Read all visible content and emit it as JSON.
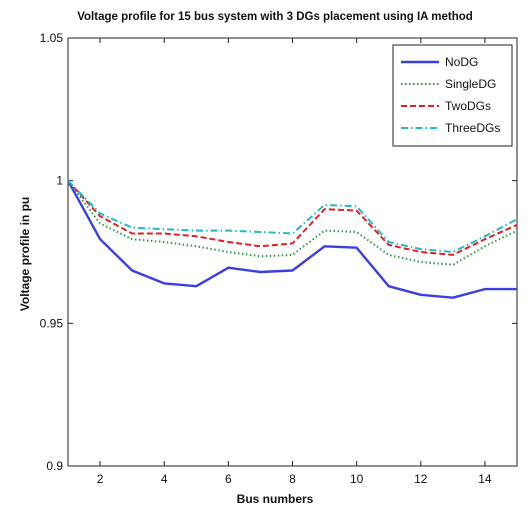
{
  "chart_data": {
    "type": "line",
    "title": "Voltage profile for 15 bus system with 3 DGs placement using IA method",
    "xlabel": "Bus numbers",
    "ylabel": "Voltage profile in pu",
    "xlim": [
      1,
      15
    ],
    "ylim": [
      0.9,
      1.05
    ],
    "xticks": [
      2,
      4,
      6,
      8,
      10,
      12,
      14
    ],
    "yticks": [
      0.9,
      0.95,
      1,
      1.05
    ],
    "ytick_labels": [
      "0.9",
      "0.95",
      "1",
      "1.05"
    ],
    "grid": false,
    "legend_position": "top-right",
    "x": [
      1,
      2,
      3,
      4,
      5,
      6,
      7,
      8,
      9,
      10,
      11,
      12,
      13,
      14,
      15
    ],
    "series": [
      {
        "name": "NoDG",
        "color": "#3b3fe0",
        "style": "solid",
        "values": [
          1.0,
          0.9795,
          0.9685,
          0.964,
          0.963,
          0.9695,
          0.968,
          0.9685,
          0.977,
          0.9765,
          0.963,
          0.96,
          0.959,
          0.962,
          0.962
        ]
      },
      {
        "name": "SingleDG",
        "color": "#2e9a3e",
        "style": "dotted",
        "values": [
          1.0,
          0.985,
          0.9795,
          0.9785,
          0.977,
          0.975,
          0.9735,
          0.974,
          0.9825,
          0.982,
          0.974,
          0.9715,
          0.9705,
          0.977,
          0.9825
        ]
      },
      {
        "name": "TwoDGs",
        "color": "#e02020",
        "style": "dashed",
        "values": [
          1.0,
          0.9875,
          0.9815,
          0.9815,
          0.9805,
          0.9785,
          0.977,
          0.978,
          0.99,
          0.9895,
          0.9775,
          0.975,
          0.974,
          0.9795,
          0.9845
        ]
      },
      {
        "name": "ThreeDGs",
        "color": "#22b8c8",
        "style": "dashdot",
        "values": [
          1.0,
          0.9885,
          0.9835,
          0.983,
          0.9825,
          0.9825,
          0.982,
          0.9815,
          0.9915,
          0.991,
          0.9785,
          0.976,
          0.975,
          0.9805,
          0.9865
        ]
      }
    ]
  }
}
